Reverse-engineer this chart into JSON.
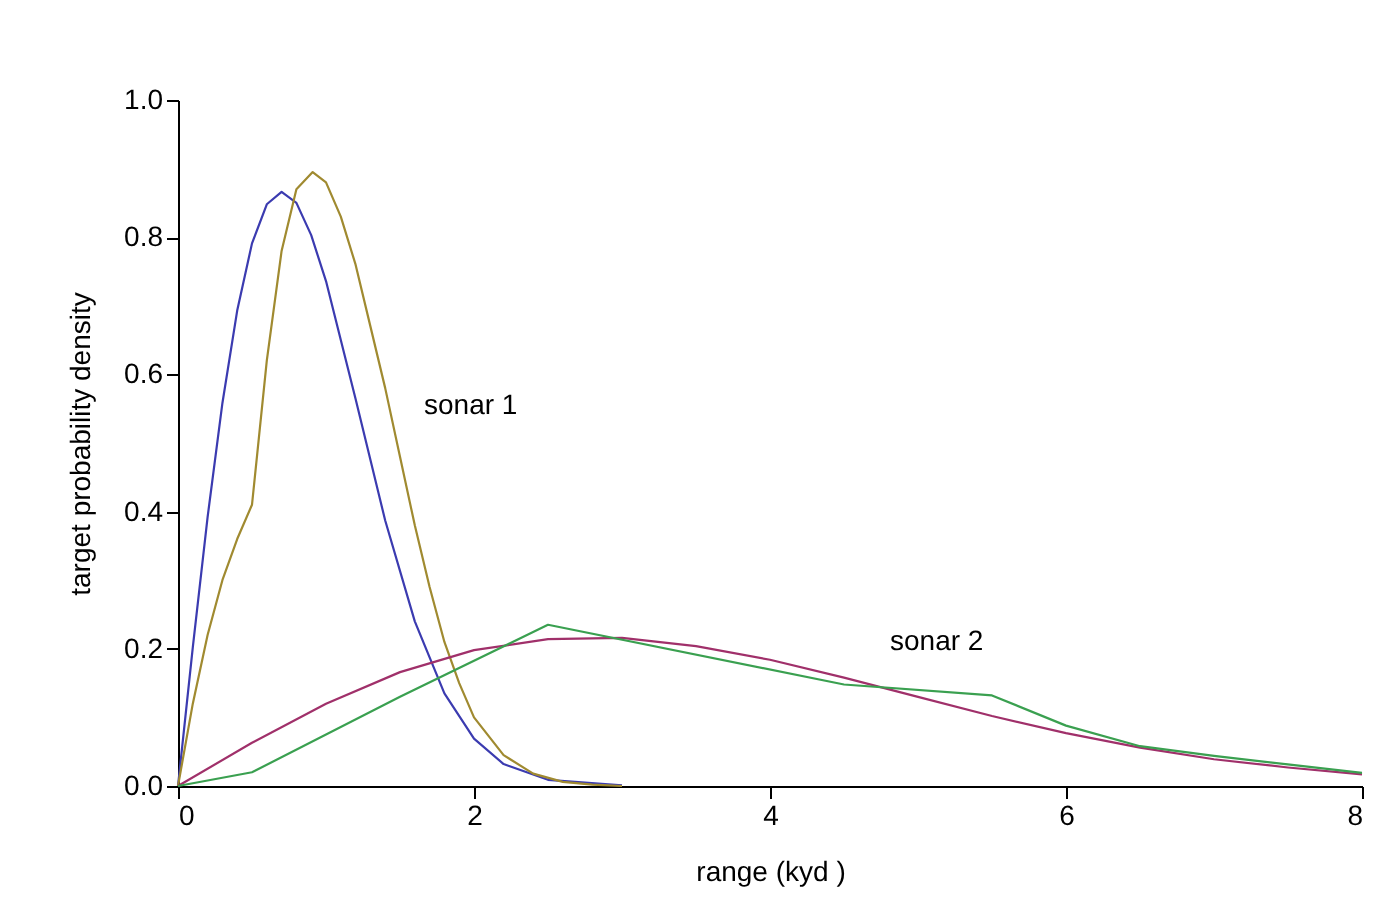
{
  "chart_data": {
    "type": "line",
    "xlabel": "range  (kyd )",
    "ylabel": "target probability density",
    "xlim": [
      0,
      8
    ],
    "xticks": [
      0,
      2,
      4,
      6,
      8
    ],
    "ylim": [
      0,
      1
    ],
    "yticks": [
      {
        "value": 0,
        "label": "0.0"
      },
      0.2,
      0.4,
      0.6,
      0.8,
      {
        "value": 1,
        "label": "1.0"
      }
    ],
    "grid": false,
    "marker": "none",
    "line_style": "solid",
    "series": [
      {
        "color": "#3b3bb0",
        "x": [
          0,
          0.1,
          0.2,
          0.3,
          0.4,
          0.5,
          0.6,
          0.7,
          0.8,
          0.9,
          1.0,
          1.2,
          1.4,
          1.6,
          1.8,
          2.0,
          2.2,
          2.5,
          3.0
        ],
        "values": [
          0,
          0.202,
          0.392,
          0.558,
          0.693,
          0.791,
          0.848,
          0.866,
          0.85,
          0.803,
          0.736,
          0.564,
          0.387,
          0.24,
          0.135,
          0.069,
          0.032,
          0.009,
          0.001
        ]
      },
      {
        "color": "#a08a30",
        "x": [
          0,
          0.1,
          0.2,
          0.3,
          0.4,
          0.5,
          0.6,
          0.7,
          0.8,
          0.91,
          1.0,
          1.1,
          1.2,
          1.3,
          1.4,
          1.5,
          1.6,
          1.7,
          1.8,
          1.9,
          2.0,
          2.2,
          2.4,
          2.6,
          2.8,
          3.0
        ],
        "values": [
          0,
          0.12,
          0.22,
          0.3,
          0.36,
          0.41,
          0.62,
          0.78,
          0.87,
          0.895,
          0.88,
          0.83,
          0.76,
          0.67,
          0.58,
          0.48,
          0.38,
          0.29,
          0.21,
          0.15,
          0.1,
          0.045,
          0.018,
          0.006,
          0.002,
          0
        ]
      },
      {
        "color": "#a0306a",
        "x": [
          0,
          0.5,
          1,
          1.5,
          2,
          2.5,
          3,
          3.5,
          4,
          4.5,
          5,
          5.5,
          6,
          6.5,
          7,
          7.5,
          8
        ],
        "values": [
          0,
          0.063,
          0.12,
          0.166,
          0.198,
          0.214,
          0.216,
          0.204,
          0.184,
          0.158,
          0.13,
          0.102,
          0.077,
          0.056,
          0.039,
          0.027,
          0.017
        ]
      },
      {
        "color": "#3aa050",
        "x": [
          0,
          0.5,
          1.5,
          2.5,
          4.5,
          5.5,
          6,
          6.5,
          7,
          8
        ],
        "values": [
          0,
          0.02,
          0.13,
          0.235,
          0.148,
          0.132,
          0.088,
          0.058,
          0.044,
          0.019
        ]
      }
    ],
    "annotations": [
      "sonar 1",
      "sonar 2"
    ]
  }
}
